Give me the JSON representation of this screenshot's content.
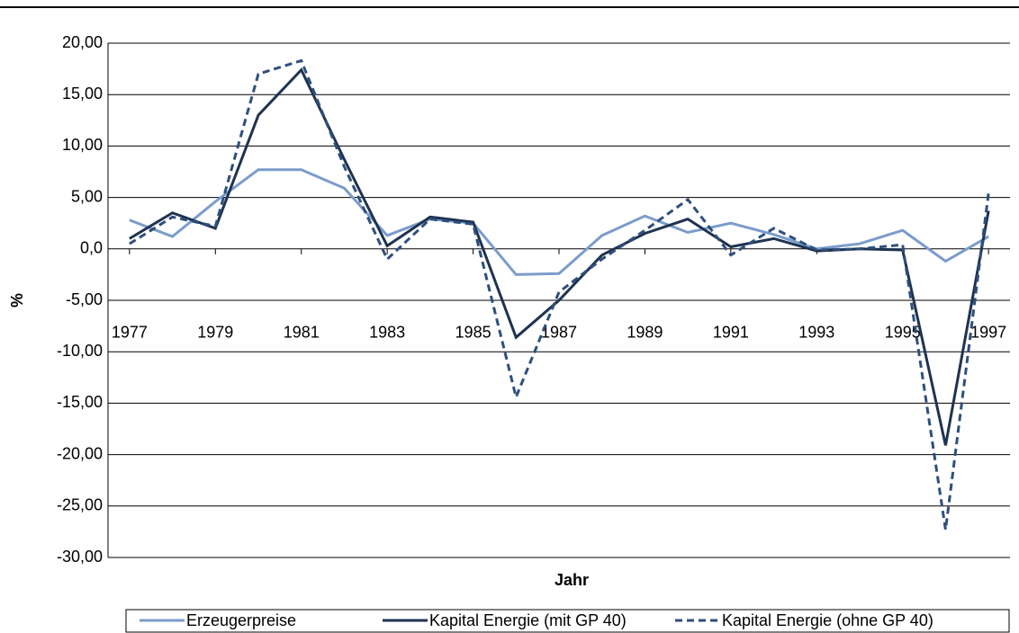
{
  "chart_data": {
    "type": "line",
    "x_label": "Jahr",
    "y_label": "%",
    "x": [
      1977,
      1978,
      1979,
      1980,
      1981,
      1982,
      1983,
      1984,
      1985,
      1986,
      1987,
      1988,
      1989,
      1990,
      1991,
      1992,
      1993,
      1994,
      1995,
      1996,
      1997
    ],
    "xlim": [
      1976.5,
      1997.5
    ],
    "xticks": [
      1977,
      1979,
      1981,
      1983,
      1985,
      1987,
      1989,
      1991,
      1993,
      1995,
      1997
    ],
    "ylim": [
      -30,
      20
    ],
    "yticks": [
      {
        "value": 20,
        "label": "20,00"
      },
      {
        "value": 15,
        "label": "15,00"
      },
      {
        "value": 10,
        "label": "10,00"
      },
      {
        "value": 5,
        "label": "5,00"
      },
      {
        "value": 0,
        "label": "0,0"
      },
      {
        "value": -5,
        "label": "-5,00"
      },
      {
        "value": -10,
        "label": "-10,00"
      },
      {
        "value": -15,
        "label": "-15,00"
      },
      {
        "value": -20,
        "label": "-20,00"
      },
      {
        "value": -25,
        "label": "-25,00"
      },
      {
        "value": -30,
        "label": "-30,00"
      }
    ],
    "grid": true,
    "legend": "bottom",
    "series": [
      {
        "name": "Erzeugerpreise",
        "color": "#7a9ccc",
        "style": "solid",
        "values": [
          2.8,
          1.2,
          4.6,
          7.7,
          7.7,
          5.9,
          1.3,
          2.9,
          2.5,
          -2.5,
          -2.4,
          1.3,
          3.2,
          1.6,
          2.5,
          1.4,
          0.0,
          0.5,
          1.8,
          -1.2,
          1.2
        ]
      },
      {
        "name": "Kapital Energie (mit GP 40)",
        "color": "#1f3350",
        "style": "solid",
        "values": [
          1.0,
          3.5,
          2.0,
          13.0,
          17.4,
          8.7,
          0.3,
          3.1,
          2.6,
          -8.6,
          -5.0,
          -0.6,
          1.5,
          2.9,
          0.2,
          1.0,
          -0.2,
          0.0,
          -0.1,
          -19.1,
          3.7
        ]
      },
      {
        "name": "Kapital Energie (ohne GP 40)",
        "color": "#2e4f7c",
        "style": "dashed",
        "values": [
          0.5,
          3.1,
          2.2,
          17.0,
          18.3,
          8.0,
          -1.0,
          2.9,
          2.4,
          -14.4,
          -4.2,
          -1.0,
          1.8,
          4.8,
          -0.6,
          2.0,
          -0.1,
          0.0,
          0.4,
          -27.3,
          5.4
        ]
      }
    ]
  }
}
